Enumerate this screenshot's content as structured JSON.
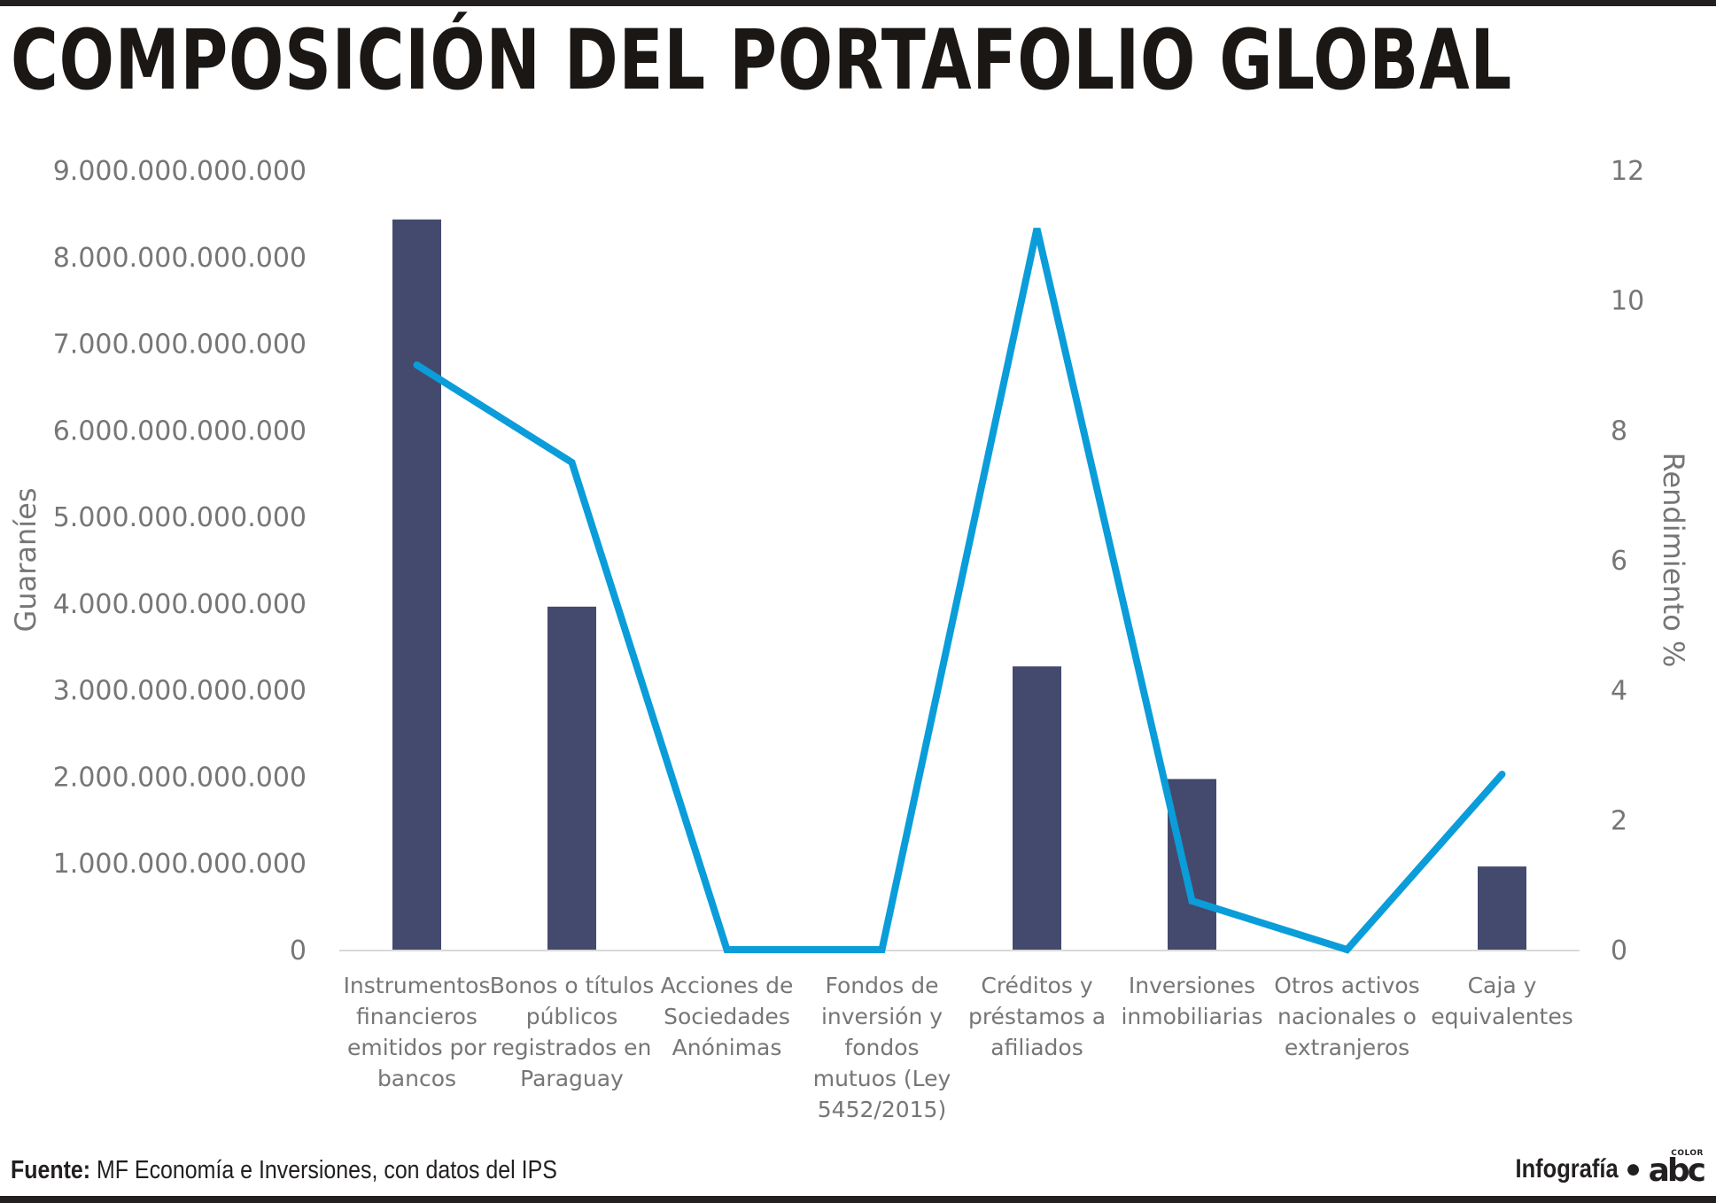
{
  "header": {
    "title": "COMPOSICIÓN DEL PORTAFOLIO GLOBAL"
  },
  "footer": {
    "source_label": "Fuente:",
    "source_text": "MF Economía e Inversiones, con datos del IPS",
    "credit_label": "Infografía",
    "logo_main": "abc",
    "logo_small": "COLOR"
  },
  "chart_data": {
    "type": "bar",
    "ylabel": "Guaraníes",
    "y2label": "Rendimiento %",
    "ylim": [
      0,
      9000000000000
    ],
    "y2lim": [
      0,
      12
    ],
    "yticks": [
      0,
      1000000000000,
      2000000000000,
      3000000000000,
      4000000000000,
      5000000000000,
      6000000000000,
      7000000000000,
      8000000000000,
      9000000000000
    ],
    "ytick_labels": [
      "0",
      "1.000.000.000.000",
      "2.000.000.000.000",
      "3.000.000.000.000",
      "4.000.000.000.000",
      "5.000.000.000.000",
      "6.000.000.000.000",
      "7.000.000.000.000",
      "8.000.000.000.000",
      "9.000.000.000.000"
    ],
    "y2ticks": [
      0,
      2,
      4,
      6,
      8,
      10,
      12
    ],
    "y2tick_labels": [
      "0",
      "2",
      "4",
      "6",
      "8",
      "10",
      "12"
    ],
    "categories": [
      [
        "Instrumentos",
        "financieros",
        "emitidos por",
        "bancos"
      ],
      [
        "Bonos o títulos",
        "públicos",
        "registrados en",
        "Paraguay"
      ],
      [
        "Acciones de",
        "Sociedades",
        "Anónimas"
      ],
      [
        "Fondos de",
        "inversión y",
        "fondos",
        "mutuos (Ley",
        "5452/2015)"
      ],
      [
        "Créditos y",
        "préstamos a",
        "afiliados"
      ],
      [
        "Inversiones",
        "inmobiliarias"
      ],
      [
        "Otros activos",
        "nacionales o",
        "extranjeros"
      ],
      [
        "Caja y",
        "equivalentes"
      ]
    ],
    "series": [
      {
        "type": "bar",
        "axis": "left",
        "color": "#444a6e",
        "values": [
          8430000000000,
          3960000000000,
          0,
          0,
          3270000000000,
          1970000000000,
          0,
          960000000000
        ]
      },
      {
        "type": "line",
        "axis": "right",
        "color": "#0a9dd9",
        "values": [
          9.0,
          7.5,
          0,
          0,
          11.1,
          0.75,
          0,
          2.7
        ]
      }
    ],
    "grid": false,
    "legend": "none",
    "colors": {
      "axis_text": "#767676",
      "baseline": "#d9d9d9"
    }
  }
}
